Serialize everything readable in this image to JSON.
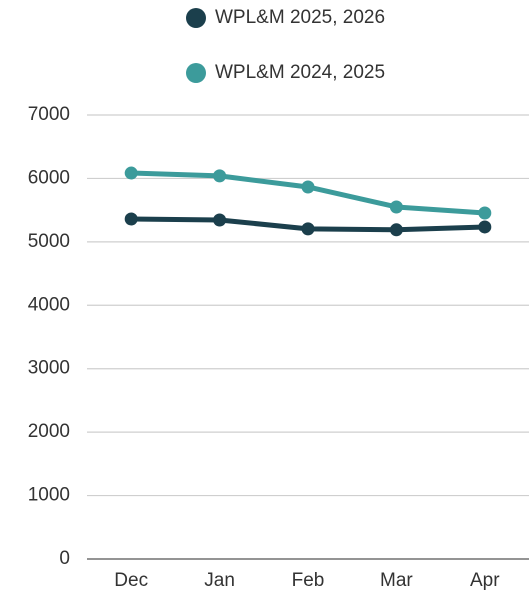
{
  "chart_data": {
    "type": "line",
    "categories": [
      "Dec",
      "Jan",
      "Feb",
      "Mar",
      "Apr"
    ],
    "series": [
      {
        "name": "WPL&M 2025, 2026",
        "color": "#1b3f4c",
        "values": [
          5360,
          5345,
          5205,
          5190,
          5235
        ]
      },
      {
        "name": "WPL&M 2024, 2025",
        "color": "#3c9b9b",
        "values": [
          6085,
          6040,
          5865,
          5550,
          5455
        ]
      }
    ],
    "ylim": [
      0,
      7000
    ],
    "yticks": [
      0,
      1000,
      2000,
      3000,
      4000,
      5000,
      6000,
      7000
    ],
    "grid": true,
    "legend": "top"
  }
}
